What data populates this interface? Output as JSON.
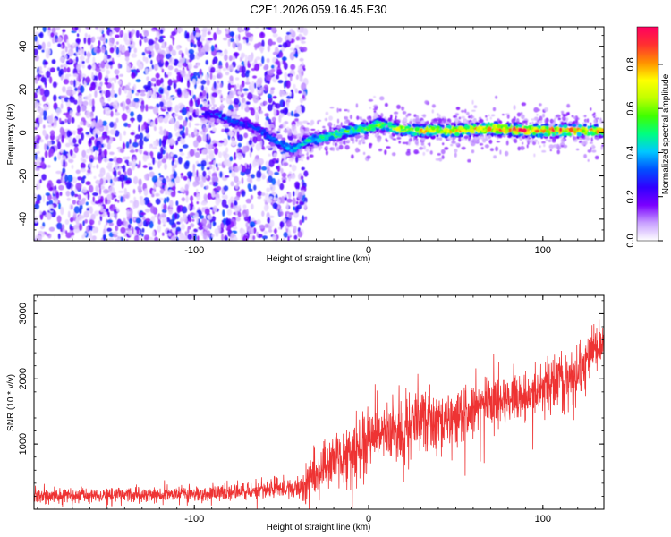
{
  "figure": {
    "title": "C2E1.2026.059.16.45.E30"
  },
  "chart_data": [
    {
      "type": "heatmap",
      "xlabel": "Height of straight line (km)",
      "ylabel": "Frequency (Hz)",
      "xlim": [
        -192,
        135
      ],
      "ylim": [
        -50,
        49
      ],
      "xticks": [
        -100,
        0,
        100
      ],
      "xtick_labels": [
        "-100",
        "0",
        "100"
      ],
      "yticks": [
        -40,
        -20,
        0,
        20,
        40
      ],
      "ytick_labels": [
        "-40",
        "-20",
        "0",
        "20",
        "40"
      ],
      "colorbar": {
        "label": "Normalized spectral amplitude",
        "range": [
          0,
          0.97
        ],
        "ticks": [
          0.0,
          0.2,
          0.4,
          0.6,
          0.8
        ],
        "tick_labels": [
          "0.0",
          "0.2",
          "0.4",
          "0.6",
          "0.8"
        ],
        "colors": [
          "#ffffff",
          "#c8a0ff",
          "#7a00ff",
          "#3000ff",
          "#0050ff",
          "#00c8ff",
          "#00ff80",
          "#40ff00",
          "#c0ff00",
          "#ffff00",
          "#ff9000",
          "#ff3030",
          "#ff0060"
        ]
      },
      "noise_region_end_km": -36,
      "signal_track": {
        "x": [
          -95,
          -85,
          -78,
          -70,
          -62,
          -55,
          -48,
          -44,
          -40,
          -36,
          -30,
          -20,
          -10,
          0,
          5,
          15,
          30,
          50,
          70,
          90,
          110,
          135
        ],
        "y": [
          9,
          8,
          5,
          4,
          1,
          -3,
          -6,
          -8,
          -6,
          -4,
          -3,
          -1,
          1,
          2,
          4,
          2,
          1,
          1,
          2,
          1,
          1,
          1
        ],
        "amplitude": [
          0.3,
          0.35,
          0.35,
          0.3,
          0.35,
          0.4,
          0.4,
          0.4,
          0.45,
          0.5,
          0.5,
          0.55,
          0.6,
          0.65,
          0.6,
          0.7,
          0.75,
          0.8,
          0.85,
          0.9,
          0.85,
          0.8
        ]
      }
    },
    {
      "type": "line",
      "xlabel": "Height of straight line (km)",
      "ylabel": "SNR (10 * v/v)",
      "xlim": [
        -192,
        135
      ],
      "ylim": [
        0,
        3280
      ],
      "xticks": [
        -100,
        0,
        100
      ],
      "xtick_labels": [
        "-100",
        "0",
        "100"
      ],
      "yticks": [
        1000,
        2000,
        3000
      ],
      "ytick_labels": [
        "1000",
        "2000",
        "3000"
      ],
      "series": [
        {
          "color": "#ee3333",
          "envelope_x": [
            -192,
            -150,
            -100,
            -60,
            -40,
            -36,
            -25,
            -10,
            0,
            20,
            50,
            80,
            100,
            120,
            135
          ],
          "envelope_median": [
            200,
            220,
            240,
            290,
            320,
            360,
            650,
            850,
            1050,
            1250,
            1450,
            1650,
            1850,
            2050,
            2650
          ],
          "envelope_spread": [
            110,
            120,
            130,
            150,
            170,
            330,
            420,
            500,
            520,
            520,
            500,
            420,
            420,
            480,
            380
          ]
        }
      ]
    }
  ]
}
